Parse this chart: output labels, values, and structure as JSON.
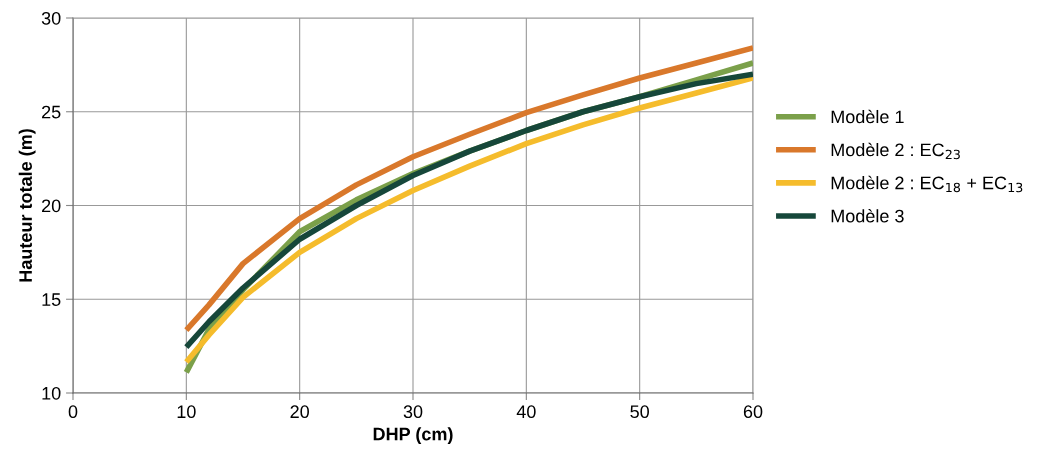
{
  "chart_data": {
    "type": "line",
    "xlabel": "DHP (cm)",
    "ylabel": "Hauteur totale (m)",
    "x": [
      10,
      12,
      15,
      20,
      25,
      30,
      35,
      40,
      45,
      50,
      55,
      60
    ],
    "series": [
      {
        "name": "Modèle 1",
        "color": "#7ba04a",
        "values": [
          11.1,
          13.4,
          15.5,
          18.6,
          20.3,
          21.7,
          22.9,
          24.0,
          25.0,
          25.8,
          26.7,
          27.6
        ]
      },
      {
        "name": "Modèle 2 : EC$_{23}$",
        "color": "#d9782b",
        "values": [
          13.35,
          14.7,
          16.9,
          19.3,
          21.1,
          22.6,
          23.8,
          24.95,
          25.9,
          26.8,
          27.6,
          28.4
        ]
      },
      {
        "name": "Modèle 2 : EC$_{18}$ + EC$_{13}$",
        "color": "#f5bc2c",
        "values": [
          11.65,
          13.1,
          15.1,
          17.5,
          19.3,
          20.8,
          22.1,
          23.3,
          24.3,
          25.2,
          26.0,
          26.8
        ]
      },
      {
        "name": "Modèle 3",
        "color": "#16473a",
        "values": [
          12.45,
          13.8,
          15.6,
          18.2,
          20.0,
          21.6,
          22.9,
          24.0,
          25.0,
          25.8,
          26.5,
          27.0
        ]
      }
    ],
    "xlim": [
      0,
      60
    ],
    "xticks": [
      0,
      10,
      20,
      30,
      40,
      50,
      60
    ],
    "ylim": [
      10,
      30
    ],
    "yticks": [
      10,
      15,
      20,
      25,
      30
    ],
    "grid": true,
    "legend": "right",
    "marker": "none",
    "line_style": "solid"
  }
}
